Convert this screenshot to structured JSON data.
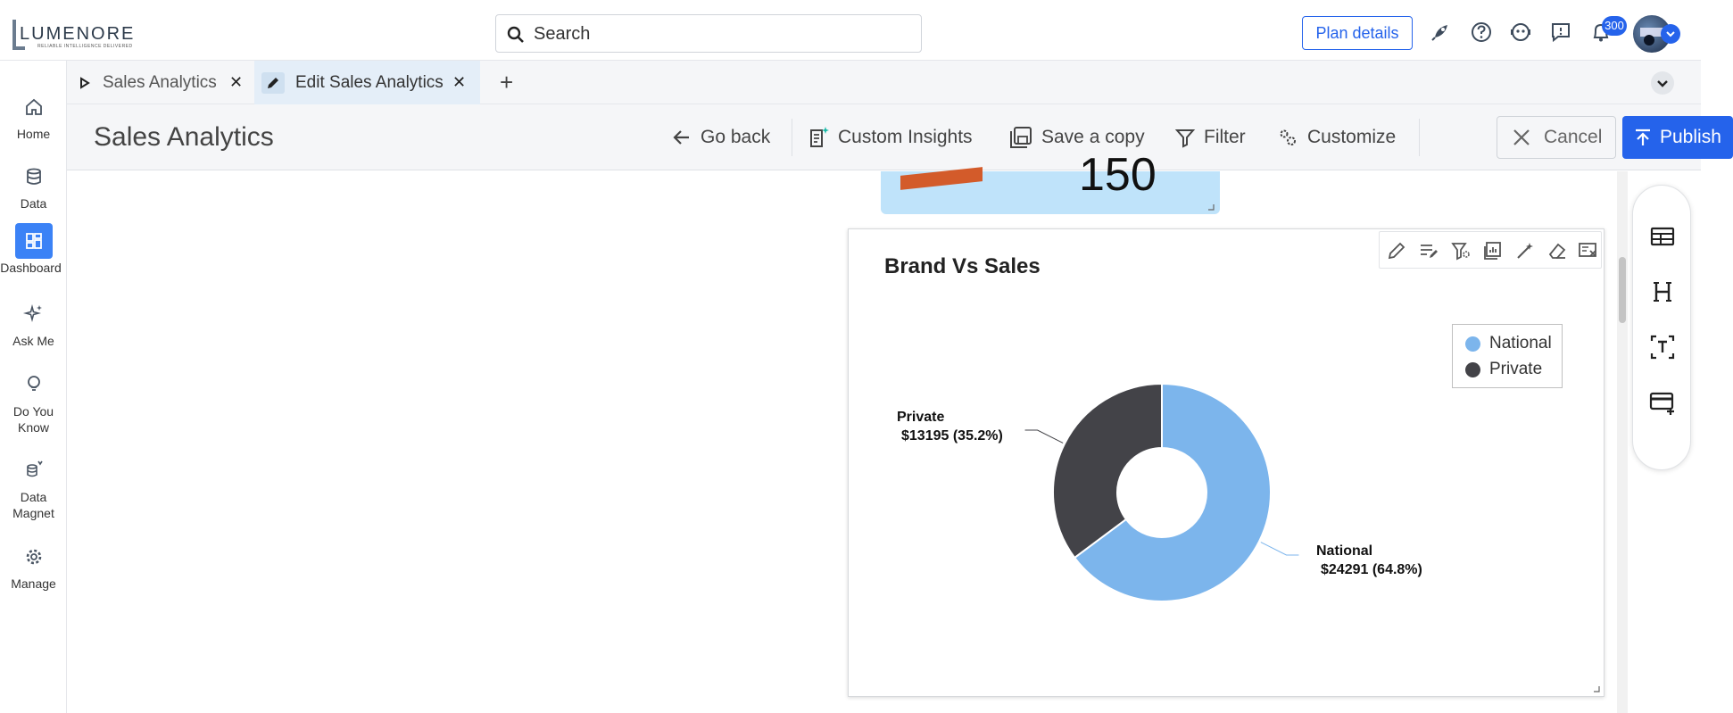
{
  "app": {
    "logo_text": "LUMENORE",
    "logo_tagline": "RELIABLE INTELLIGENCE DELIVERED",
    "search_placeholder": "Search",
    "plan_label": "Plan details",
    "notification_count": "300"
  },
  "sidebar": {
    "items": [
      {
        "label": "Home",
        "icon": "home-icon"
      },
      {
        "label": "Data",
        "icon": "database-icon"
      },
      {
        "label": "Dashboard",
        "icon": "dashboard-icon"
      },
      {
        "label": "Ask Me",
        "icon": "sparkle-icon"
      },
      {
        "label": "Do You Know",
        "icon": "lightbulb-icon"
      },
      {
        "label": "Data Magnet",
        "icon": "data-magnet-icon"
      },
      {
        "label": "Manage",
        "icon": "gear-icon"
      }
    ]
  },
  "tabs": [
    {
      "label": "Sales Analytics",
      "icon": "play-icon"
    },
    {
      "label": "Edit Sales Analytics",
      "icon": "pencil-icon"
    }
  ],
  "header": {
    "title": "Sales Analytics",
    "go_back": "Go back",
    "custom_insights": "Custom Insights",
    "save_copy": "Save a copy",
    "filter": "Filter",
    "customize": "Customize",
    "cancel": "Cancel",
    "publish": "Publish"
  },
  "kpi": {
    "value": "150"
  },
  "widget": {
    "title": "Brand Vs Sales",
    "labels": {
      "private_name": "Private",
      "private_value": "$13195 (35.2%)",
      "national_name": "National",
      "national_value": "$24291 (64.8%)"
    }
  },
  "chart_data": {
    "type": "pie",
    "title": "Brand Vs Sales",
    "donut": true,
    "legend_position": "top-right",
    "slices": [
      {
        "name": "National",
        "value": 24291,
        "percent": 64.8,
        "color": "#7cb5ec"
      },
      {
        "name": "Private",
        "value": 13195,
        "percent": 35.2,
        "color": "#434348"
      }
    ]
  },
  "colors": {
    "accent": "#2563eb",
    "national": "#7cb5ec",
    "private": "#434348"
  }
}
